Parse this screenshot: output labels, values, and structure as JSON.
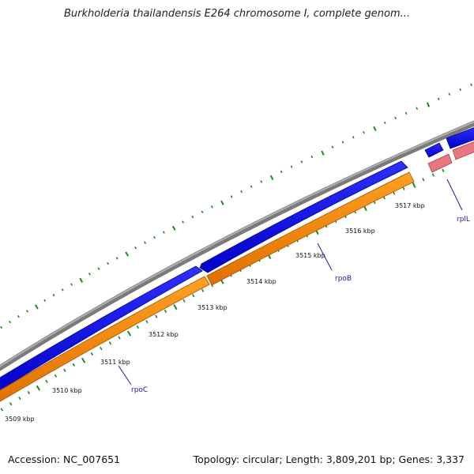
{
  "title": "Burkholderia thailandensis E264 chromosome I, complete genom...",
  "footer": {
    "accession": "Accession: NC_007651",
    "summary": "Topology: circular; Length: 3,809,201 bp; Genes: 3,337"
  },
  "scale_ticks": [
    {
      "label": "3509 kbp"
    },
    {
      "label": "3510 kbp"
    },
    {
      "label": "3511 kbp"
    },
    {
      "label": "3512 kbp"
    },
    {
      "label": "3513 kbp"
    },
    {
      "label": "3514 kbp"
    },
    {
      "label": "3515 kbp"
    },
    {
      "label": "3516 kbp"
    },
    {
      "label": "3517 kbp"
    }
  ],
  "genes": [
    {
      "name": "rpoC"
    },
    {
      "name": "rpoB"
    },
    {
      "name": "rplL"
    }
  ],
  "colors": {
    "backbone": "#8a8a8a",
    "forward_cds": "#1010e0",
    "reverse_cds": "#ff8c10",
    "rna_like": "#e87880",
    "tick": "#1a8a1a",
    "gene_label": "#1a1aa8"
  }
}
